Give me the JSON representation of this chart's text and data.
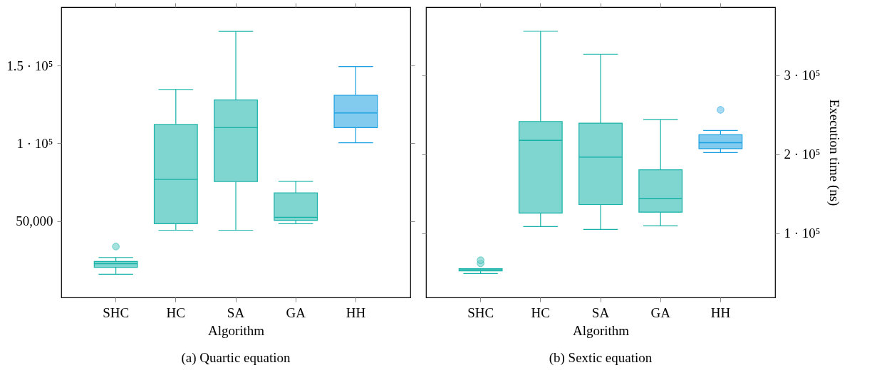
{
  "chart_data": [
    {
      "type": "box",
      "title": "(a) Quartic equation",
      "xlabel": "Algorithm",
      "categories": [
        "SHC",
        "HC",
        "SA",
        "GA",
        "HH"
      ],
      "colors": [
        "#17b3a8",
        "#17b3a8",
        "#17b3a8",
        "#17b3a8",
        "#1ba1e2"
      ],
      "ylim": [
        1000,
        187500
      ],
      "yticks": [
        {
          "value": 50000,
          "label": "50,000"
        },
        {
          "value": 100000,
          "label": "1 · 10⁵"
        },
        {
          "value": 150000,
          "label": "1.5 · 10⁵"
        }
      ],
      "grid": false,
      "boxes": [
        {
          "low": 15900,
          "q1": 20400,
          "median": 22700,
          "q3": 24100,
          "high": 26700,
          "outliers": [
            33700
          ]
        },
        {
          "low": 44200,
          "q1": 48400,
          "median": 76800,
          "q3": 112200,
          "high": 134600
        },
        {
          "low": 44200,
          "q1": 75400,
          "median": 110100,
          "q3": 127900,
          "high": 171900
        },
        {
          "low": 48400,
          "q1": 50500,
          "median": 52500,
          "q3": 68200,
          "high": 75700
        },
        {
          "low": 100400,
          "q1": 110100,
          "median": 119500,
          "q3": 130900,
          "high": 149300
        }
      ]
    },
    {
      "type": "box",
      "title": "(b) Sextic equation",
      "xlabel": "Algorithm",
      "y2label": "Execution time (ns)",
      "categories": [
        "SHC",
        "HC",
        "SA",
        "GA",
        "HH"
      ],
      "colors": [
        "#17b3a8",
        "#17b3a8",
        "#17b3a8",
        "#17b3a8",
        "#1ba1e2"
      ],
      "y2lim": [
        19000,
        386000
      ],
      "y2ticks": [
        {
          "value": 100000,
          "label": "1 · 10⁵"
        },
        {
          "value": 200000,
          "label": "2 · 10⁵"
        },
        {
          "value": 300000,
          "label": "3 · 10⁵"
        }
      ],
      "grid": false,
      "series": [
        {
          "axis": "y2",
          "boxes": [
            {
              "low": 49300,
              "q1": 52500,
              "median": 53900,
              "q3": 55400,
              "high": 55400,
              "outliers": [
                62100,
                66100
              ]
            },
            {
              "low": 108600,
              "q1": 125700,
              "median": 217500,
              "q3": 241400,
              "high": 355400
            },
            {
              "low": 105000,
              "q1": 136400,
              "median": 196400,
              "q3": 239300,
              "high": 326400
            },
            {
              "low": 109600,
              "q1": 126800,
              "median": 144300,
              "q3": 180400,
              "high": 243900
            },
            {
              "low": 202100,
              "q1": 207100,
              "median": 214600,
              "q3": 224600,
              "high": 230000,
              "outliers": [
                256100
              ]
            }
          ]
        }
      ]
    }
  ]
}
